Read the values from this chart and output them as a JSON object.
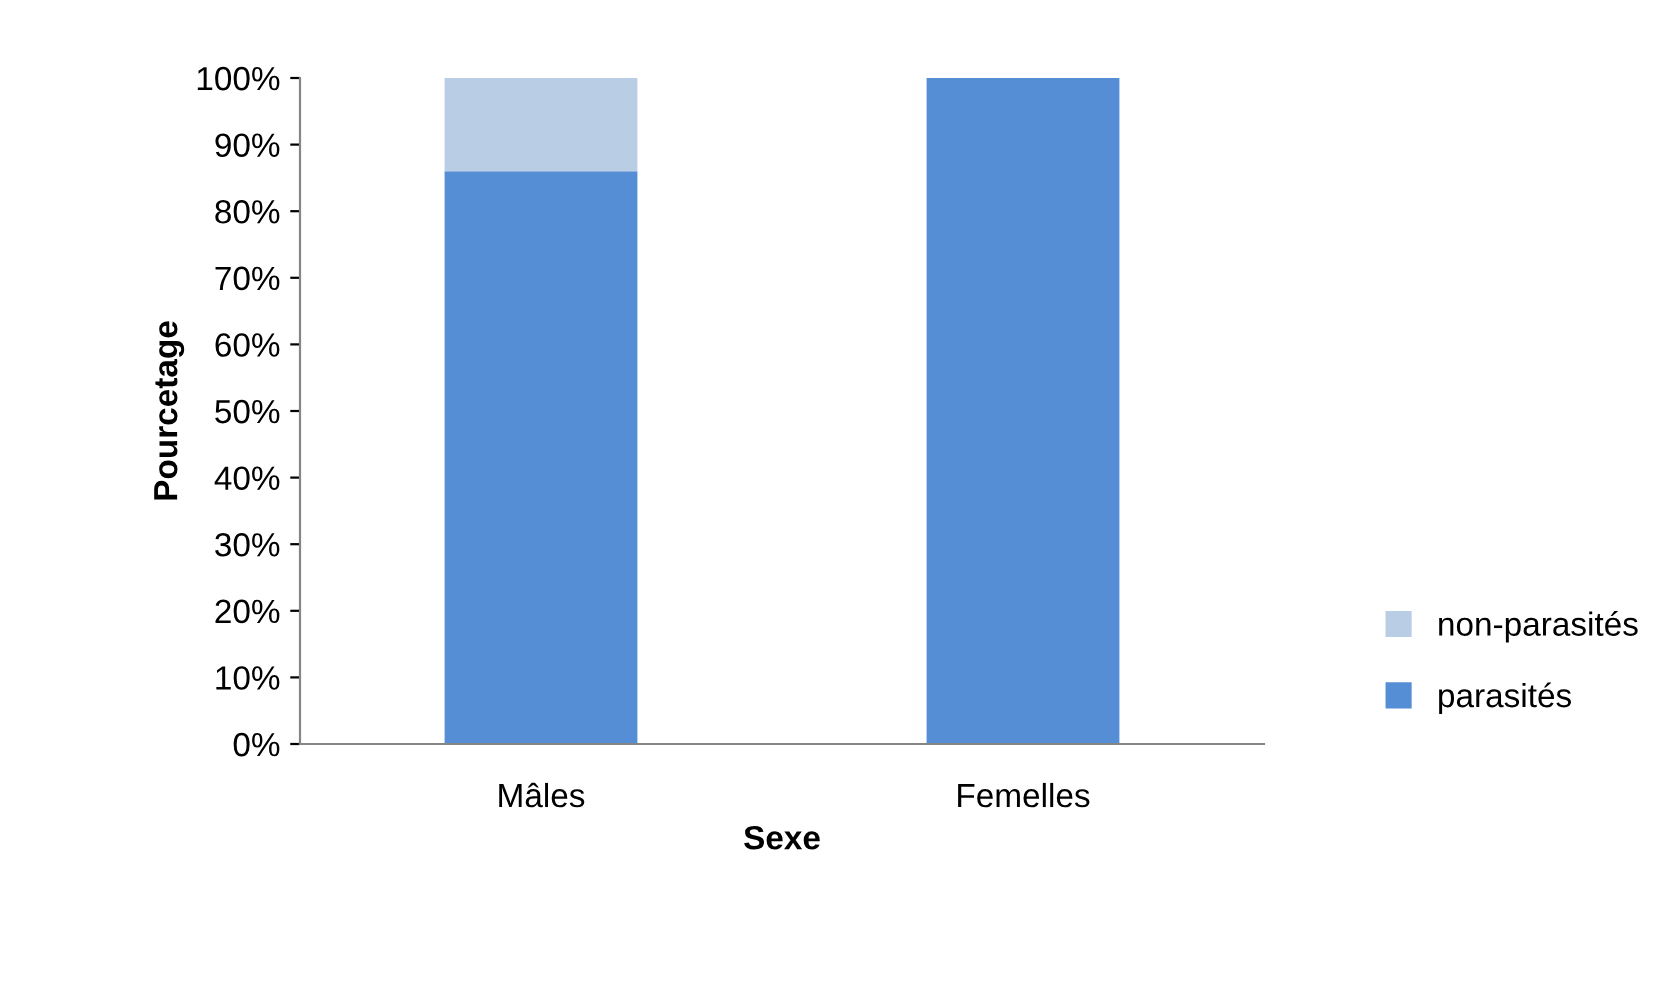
{
  "chart_data": {
    "type": "bar",
    "stacked": true,
    "xlabel": "Sexe",
    "ylabel": "Pourcetage",
    "categories": [
      "Mâles",
      "Femelles"
    ],
    "series": [
      {
        "name": "parasités",
        "color": "#558ed5",
        "values": [
          86,
          100
        ]
      },
      {
        "name": "non-parasités",
        "color": "#b9cde5",
        "values": [
          14,
          0
        ]
      }
    ],
    "ylim": [
      0,
      100
    ],
    "yticks": [
      {
        "value": 0,
        "label": "0%"
      },
      {
        "value": 10,
        "label": "10%"
      },
      {
        "value": 20,
        "label": "20%"
      },
      {
        "value": 30,
        "label": "30%"
      },
      {
        "value": 40,
        "label": "40%"
      },
      {
        "value": 50,
        "label": "50%"
      },
      {
        "value": 60,
        "label": "60%"
      },
      {
        "value": 70,
        "label": "70%"
      },
      {
        "value": 80,
        "label": "80%"
      },
      {
        "value": 90,
        "label": "90%"
      },
      {
        "value": 100,
        "label": "100%"
      }
    ],
    "grid": false,
    "legend": "bottom right"
  }
}
